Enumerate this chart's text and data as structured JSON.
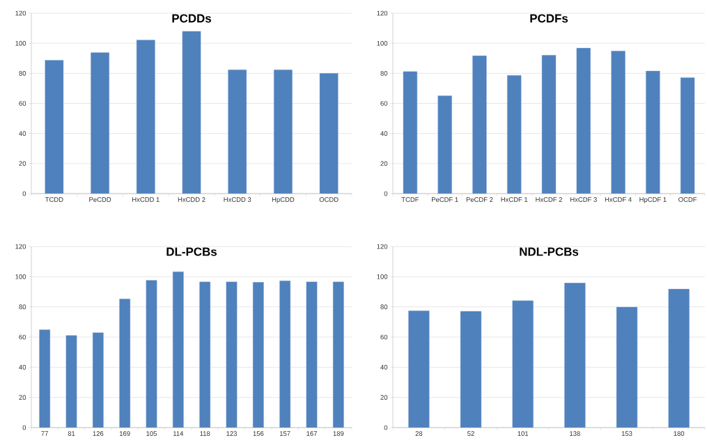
{
  "chart_data": [
    {
      "type": "bar",
      "title": "PCDDs",
      "categories": [
        "TCDD",
        "PeCDD",
        "HxCDD 1",
        "HxCDD 2",
        "HxCDD 3",
        "HpCDD",
        "OCDD"
      ],
      "values": [
        88.7,
        93.8,
        102.2,
        108,
        82.4,
        82.4,
        80
      ],
      "color": "#4f81bd",
      "ylim": [
        0,
        120
      ],
      "yticks": [
        0,
        20,
        40,
        60,
        80,
        100,
        120
      ],
      "grid": "y"
    },
    {
      "type": "bar",
      "title": "PCDFs",
      "categories": [
        "TCDF",
        "PeCDF 1",
        "PeCDF 2",
        "HxCDF 1",
        "HxCDF 2",
        "HxCDF 3",
        "HxCDF 4",
        "HpCDF 1",
        "OCDF"
      ],
      "values": [
        81.2,
        65.1,
        91.7,
        78.7,
        92.1,
        96.8,
        94.9,
        81.6,
        77.2
      ],
      "color": "#4f81bd",
      "ylim": [
        0,
        120
      ],
      "yticks": [
        0,
        20,
        40,
        60,
        80,
        100,
        120
      ],
      "grid": "y"
    },
    {
      "type": "bar",
      "title": "DL-PCBs",
      "categories": [
        "77",
        "81",
        "126",
        "169",
        "105",
        "114",
        "118",
        "123",
        "156",
        "157",
        "167",
        "189"
      ],
      "values": [
        64.9,
        61.1,
        62.9,
        85.3,
        97.6,
        103.3,
        96.6,
        96.6,
        96.3,
        97.3,
        96.6,
        96.6
      ],
      "color": "#4f81bd",
      "ylim": [
        0,
        120
      ],
      "yticks": [
        0,
        20,
        40,
        60,
        80,
        100,
        120
      ],
      "grid": "y"
    },
    {
      "type": "bar",
      "title": "NDL-PCBs",
      "categories": [
        "28",
        "52",
        "101",
        "138",
        "153",
        "180"
      ],
      "values": [
        77.4,
        77.1,
        84.1,
        95.9,
        79.9,
        91.8
      ],
      "color": "#4f81bd",
      "ylim": [
        0,
        120
      ],
      "yticks": [
        0,
        20,
        40,
        60,
        80,
        100,
        120
      ],
      "grid": "y"
    }
  ]
}
